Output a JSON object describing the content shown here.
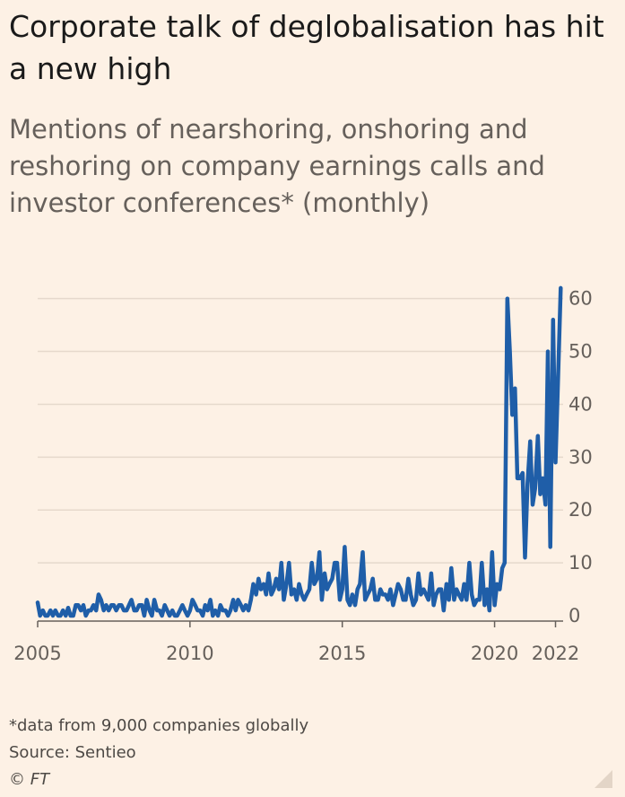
{
  "chart_data": {
    "type": "line",
    "title": "Corporate talk of deglobalisation has hit a new high",
    "subtitle": "Mentions of nearshoring, onshoring and reshoring on company earnings calls and investor conferences* (monthly)",
    "xlabel": "",
    "ylabel": "",
    "xlim": [
      2005,
      2022.25
    ],
    "ylim": [
      0,
      63
    ],
    "y_ticks": [
      0,
      10,
      20,
      30,
      40,
      50,
      60
    ],
    "x_ticks": [
      {
        "value": 2005,
        "label": "2005"
      },
      {
        "value": 2010,
        "label": "2010"
      },
      {
        "value": 2015,
        "label": "2015"
      },
      {
        "value": 2020,
        "label": "2020"
      },
      {
        "value": 2022,
        "label": "2022"
      }
    ],
    "grid": true,
    "color": "#1f5ea8",
    "series": [
      {
        "name": "Mentions",
        "x": [
          2005.0,
          2005.08,
          2005.17,
          2005.25,
          2005.33,
          2005.42,
          2005.5,
          2005.58,
          2005.67,
          2005.75,
          2005.83,
          2005.92,
          2006.0,
          2006.08,
          2006.17,
          2006.25,
          2006.33,
          2006.42,
          2006.5,
          2006.58,
          2006.67,
          2006.75,
          2006.83,
          2006.92,
          2007.0,
          2007.08,
          2007.17,
          2007.25,
          2007.33,
          2007.42,
          2007.5,
          2007.58,
          2007.67,
          2007.75,
          2007.83,
          2007.92,
          2008.0,
          2008.08,
          2008.17,
          2008.25,
          2008.33,
          2008.42,
          2008.5,
          2008.58,
          2008.67,
          2008.75,
          2008.83,
          2008.92,
          2009.0,
          2009.08,
          2009.17,
          2009.25,
          2009.33,
          2009.42,
          2009.5,
          2009.58,
          2009.67,
          2009.75,
          2009.83,
          2009.92,
          2010.0,
          2010.08,
          2010.17,
          2010.25,
          2010.33,
          2010.42,
          2010.5,
          2010.58,
          2010.67,
          2010.75,
          2010.83,
          2010.92,
          2011.0,
          2011.08,
          2011.17,
          2011.25,
          2011.33,
          2011.42,
          2011.5,
          2011.58,
          2011.67,
          2011.75,
          2011.83,
          2011.92,
          2012.0,
          2012.08,
          2012.17,
          2012.25,
          2012.33,
          2012.42,
          2012.5,
          2012.58,
          2012.67,
          2012.75,
          2012.83,
          2012.92,
          2013.0,
          2013.08,
          2013.17,
          2013.25,
          2013.33,
          2013.42,
          2013.5,
          2013.58,
          2013.67,
          2013.75,
          2013.83,
          2013.92,
          2014.0,
          2014.08,
          2014.17,
          2014.25,
          2014.33,
          2014.42,
          2014.5,
          2014.58,
          2014.67,
          2014.75,
          2014.83,
          2014.92,
          2015.0,
          2015.08,
          2015.17,
          2015.25,
          2015.33,
          2015.42,
          2015.5,
          2015.58,
          2015.67,
          2015.75,
          2015.83,
          2015.92,
          2016.0,
          2016.08,
          2016.17,
          2016.25,
          2016.33,
          2016.42,
          2016.5,
          2016.58,
          2016.67,
          2016.75,
          2016.83,
          2016.92,
          2017.0,
          2017.08,
          2017.17,
          2017.25,
          2017.33,
          2017.42,
          2017.5,
          2017.58,
          2017.67,
          2017.75,
          2017.83,
          2017.92,
          2018.0,
          2018.08,
          2018.17,
          2018.25,
          2018.33,
          2018.42,
          2018.5,
          2018.58,
          2018.67,
          2018.75,
          2018.83,
          2018.92,
          2019.0,
          2019.08,
          2019.17,
          2019.25,
          2019.33,
          2019.42,
          2019.5,
          2019.58,
          2019.67,
          2019.75,
          2019.83,
          2019.92,
          2020.0,
          2020.08,
          2020.17,
          2020.25,
          2020.33,
          2020.42,
          2020.5,
          2020.58,
          2020.67,
          2020.75,
          2020.83,
          2020.92,
          2021.0,
          2021.08,
          2021.17,
          2021.25,
          2021.33,
          2021.42,
          2021.5,
          2021.58,
          2021.67,
          2021.75,
          2021.83,
          2021.92,
          2022.0,
          2022.08,
          2022.17
        ],
        "y": [
          2.5,
          0,
          1,
          0,
          0,
          1,
          0,
          1,
          0,
          0,
          1,
          0,
          1.5,
          0,
          0,
          2,
          2,
          1,
          2,
          0,
          1,
          1,
          2,
          1,
          4,
          3,
          1,
          2,
          1,
          2,
          2,
          1,
          2,
          2,
          1,
          1,
          2,
          3,
          1,
          1,
          2,
          2,
          0,
          3,
          1,
          0,
          3,
          1,
          1,
          0,
          2,
          1,
          0,
          1,
          0,
          0,
          1,
          2,
          1,
          0,
          1,
          3,
          2,
          1,
          1,
          0,
          2,
          1,
          3,
          0,
          1,
          0,
          2,
          1,
          1,
          0,
          1,
          3,
          1,
          3,
          2,
          1,
          2,
          1,
          3,
          6,
          4,
          7,
          5,
          6,
          4,
          8,
          4,
          5,
          7,
          5,
          10,
          3,
          6,
          10,
          4,
          5,
          3,
          6,
          4,
          3,
          4,
          5,
          10,
          6,
          7,
          12,
          3,
          8,
          5,
          6,
          7,
          10,
          10,
          3,
          5,
          13,
          3,
          2,
          4,
          2,
          5,
          6,
          12,
          3,
          4,
          5,
          7,
          3,
          3,
          5,
          4,
          4,
          3,
          5,
          2,
          4,
          6,
          5,
          3,
          3,
          7,
          4,
          2,
          3,
          8,
          4,
          5,
          4,
          3,
          8,
          2,
          4,
          5,
          5,
          1,
          6,
          3,
          9,
          3,
          5,
          4,
          3,
          6,
          3,
          10,
          4,
          2,
          3,
          3,
          10,
          2,
          5,
          1,
          12,
          2,
          6,
          5,
          9,
          10,
          60,
          50,
          38,
          43,
          26,
          26,
          27,
          11,
          25,
          33,
          21,
          24,
          34,
          23,
          26,
          21,
          50,
          13,
          56,
          29,
          44,
          62
        ]
      }
    ]
  },
  "footnote": "*data from 9,000 companies globally",
  "source": "Source: Sentieo",
  "copyright": "© FT"
}
